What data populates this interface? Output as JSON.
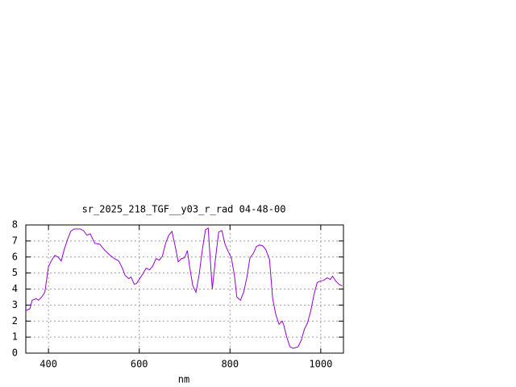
{
  "chart_data": {
    "type": "line",
    "title": "sr_2025_218_TGF__y03_r_rad 04-48-00",
    "x_label": "nm",
    "xlim": [
      350,
      1050
    ],
    "xticks": [
      400,
      600,
      800,
      1000
    ],
    "ylim": [
      0,
      8
    ],
    "yticks": [
      0,
      1,
      2,
      3,
      4,
      5,
      6,
      7,
      8
    ],
    "grid": true,
    "series": [
      {
        "color": "#9400d3",
        "x": [
          350,
          359,
          364,
          373,
          378,
          385,
          392,
          400,
          407,
          414,
          421,
          428,
          435,
          442,
          449,
          456,
          470,
          477,
          485,
          492,
          502,
          513,
          523,
          534,
          545,
          555,
          562,
          569,
          577,
          582,
          589,
          594,
          601,
          608,
          615,
          623,
          630,
          637,
          644,
          651,
          658,
          665,
          672,
          679,
          686,
          693,
          700,
          706,
          711,
          718,
          725,
          732,
          739,
          746,
          752,
          755,
          761,
          768,
          775,
          782,
          789,
          796,
          803,
          810,
          815,
          823,
          830,
          837,
          844,
          851,
          858,
          865,
          872,
          879,
          887,
          894,
          901,
          908,
          915,
          918,
          925,
          932,
          939,
          950,
          957,
          964,
          971,
          978,
          985,
          992,
          999,
          1007,
          1014,
          1021,
          1026,
          1033,
          1040,
          1047
        ],
        "values": [
          2.66,
          2.76,
          3.3,
          3.4,
          3.3,
          3.5,
          3.8,
          5.4,
          5.8,
          6.1,
          6.0,
          5.75,
          6.5,
          7.1,
          7.6,
          7.75,
          7.75,
          7.65,
          7.35,
          7.45,
          6.85,
          6.8,
          6.45,
          6.15,
          5.9,
          5.75,
          5.35,
          4.85,
          4.65,
          4.75,
          4.3,
          4.35,
          4.65,
          4.95,
          5.3,
          5.2,
          5.45,
          5.9,
          5.8,
          6.05,
          6.85,
          7.35,
          7.6,
          6.7,
          5.7,
          5.9,
          5.95,
          6.4,
          5.4,
          4.2,
          3.8,
          4.9,
          6.45,
          7.7,
          7.8,
          6.45,
          4.0,
          5.9,
          7.55,
          7.65,
          6.8,
          6.35,
          5.95,
          4.8,
          3.5,
          3.3,
          3.8,
          4.7,
          5.95,
          6.2,
          6.65,
          6.75,
          6.7,
          6.45,
          5.85,
          3.4,
          2.4,
          1.8,
          2.0,
          1.8,
          1.0,
          0.4,
          0.3,
          0.4,
          0.8,
          1.5,
          1.9,
          2.65,
          3.65,
          4.4,
          4.5,
          4.55,
          4.7,
          4.6,
          4.8,
          4.5,
          4.3,
          4.2
        ]
      }
    ]
  }
}
